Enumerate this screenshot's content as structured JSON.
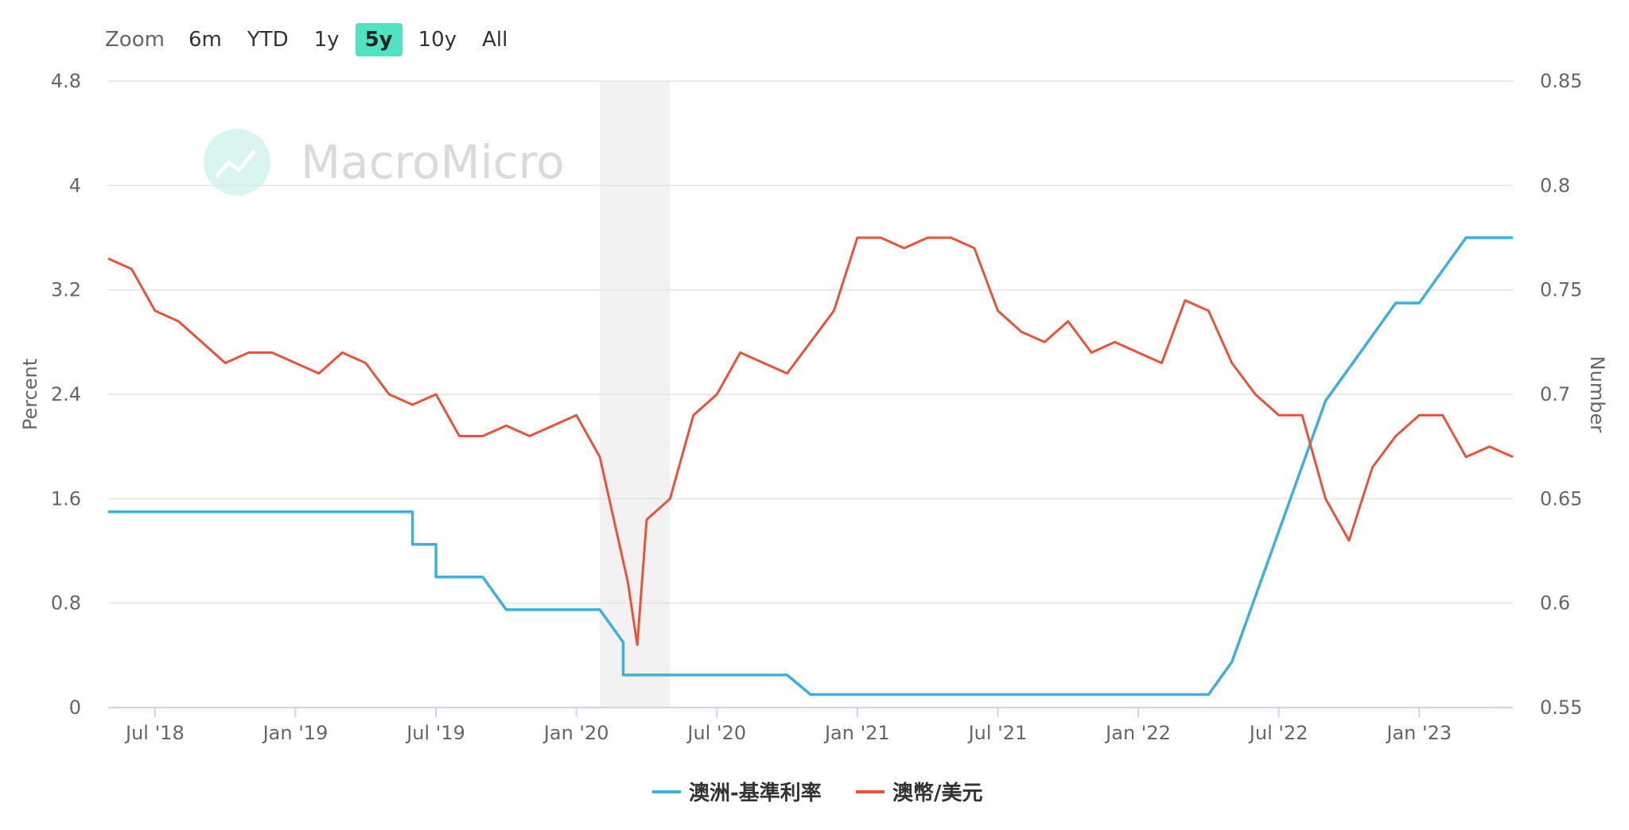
{
  "toolbar": {
    "zoom_label": "Zoom",
    "buttons": [
      "6m",
      "YTD",
      "1y",
      "5y",
      "10y",
      "All"
    ],
    "active": "5y"
  },
  "watermark": "MacroMicro",
  "colors": {
    "rate": "#3fb0da",
    "fx": "#e8533a",
    "recession": "#f2f2f2",
    "zoom_active": "#4fe3c1"
  },
  "chart_data": {
    "type": "line",
    "xlabel": "",
    "x_ticks": [
      "Jul '18",
      "Jan '19",
      "Jul '19",
      "Jan '20",
      "Jul '20",
      "Jan '21",
      "Jul '21",
      "Jan '22",
      "Jul '22",
      "Jan '23"
    ],
    "y_left": {
      "label": "Percent",
      "ticks": [
        "0",
        "0.8",
        "1.6",
        "2.4",
        "3.2",
        "4",
        "4.8"
      ],
      "range": [
        0,
        4.8
      ]
    },
    "y_right": {
      "label": "Number",
      "ticks": [
        "0.55",
        "0.6",
        "0.65",
        "0.7",
        "0.75",
        "0.8",
        "0.85"
      ],
      "range": [
        0.55,
        0.85
      ]
    },
    "x_range": [
      "2018-05",
      "2023-05"
    ],
    "recession_band": [
      "2020-02",
      "2020-04"
    ],
    "grid": true,
    "legend_position": "bottom-center",
    "series": [
      {
        "name": "澳洲-基準利率",
        "axis": "left",
        "x": [
          "2018-05",
          "2019-06",
          "2019-06",
          "2019-07",
          "2019-07",
          "2019-09",
          "2019-10",
          "2019-10",
          "2020-02",
          "2020-03",
          "2020-03",
          "2020-10",
          "2020-11",
          "2020-11",
          "2022-04",
          "2022-05",
          "2022-06",
          "2022-07",
          "2022-08",
          "2022-09",
          "2022-10",
          "2022-11",
          "2022-12",
          "2023-01",
          "2023-02",
          "2023-03",
          "2023-04",
          "2023-04",
          "2023-05"
        ],
        "values": [
          1.5,
          1.5,
          1.25,
          1.25,
          1.0,
          1.0,
          0.75,
          0.75,
          0.75,
          0.5,
          0.25,
          0.25,
          0.1,
          0.1,
          0.1,
          0.35,
          0.85,
          1.35,
          1.85,
          2.35,
          2.6,
          2.85,
          3.1,
          3.1,
          3.35,
          3.6,
          3.6,
          3.6,
          3.6
        ]
      },
      {
        "name": "澳幣/美元",
        "axis": "right",
        "x": [
          "2018-05",
          "2018-06",
          "2018-07",
          "2018-08",
          "2018-09",
          "2018-10",
          "2018-11",
          "2018-12",
          "2019-01",
          "2019-02",
          "2019-03",
          "2019-04",
          "2019-05",
          "2019-06",
          "2019-07",
          "2019-08",
          "2019-09",
          "2019-10",
          "2019-11",
          "2019-12",
          "2020-01",
          "2020-02",
          "2020-03a",
          "2020-03b",
          "2020-04",
          "2020-05",
          "2020-06",
          "2020-07",
          "2020-08",
          "2020-09",
          "2020-10",
          "2020-11",
          "2020-12",
          "2021-01",
          "2021-02",
          "2021-03",
          "2021-04",
          "2021-05",
          "2021-06",
          "2021-07",
          "2021-08",
          "2021-09",
          "2021-10",
          "2021-11",
          "2021-12",
          "2022-01",
          "2022-02",
          "2022-03",
          "2022-04",
          "2022-05",
          "2022-06",
          "2022-07",
          "2022-08",
          "2022-09",
          "2022-10",
          "2022-11",
          "2022-12",
          "2023-01",
          "2023-02",
          "2023-03",
          "2023-04",
          "2023-05"
        ],
        "values": [
          0.765,
          0.76,
          0.74,
          0.735,
          0.725,
          0.715,
          0.72,
          0.72,
          0.715,
          0.71,
          0.72,
          0.715,
          0.7,
          0.695,
          0.7,
          0.68,
          0.68,
          0.685,
          0.68,
          0.685,
          0.69,
          0.67,
          0.61,
          0.58,
          0.64,
          0.65,
          0.69,
          0.7,
          0.72,
          0.715,
          0.71,
          0.725,
          0.74,
          0.775,
          0.775,
          0.77,
          0.775,
          0.775,
          0.77,
          0.74,
          0.73,
          0.725,
          0.735,
          0.72,
          0.725,
          0.72,
          0.715,
          0.745,
          0.74,
          0.715,
          0.7,
          0.69,
          0.69,
          0.65,
          0.63,
          0.665,
          0.68,
          0.69,
          0.69,
          0.67,
          0.675,
          0.67
        ]
      }
    ]
  }
}
